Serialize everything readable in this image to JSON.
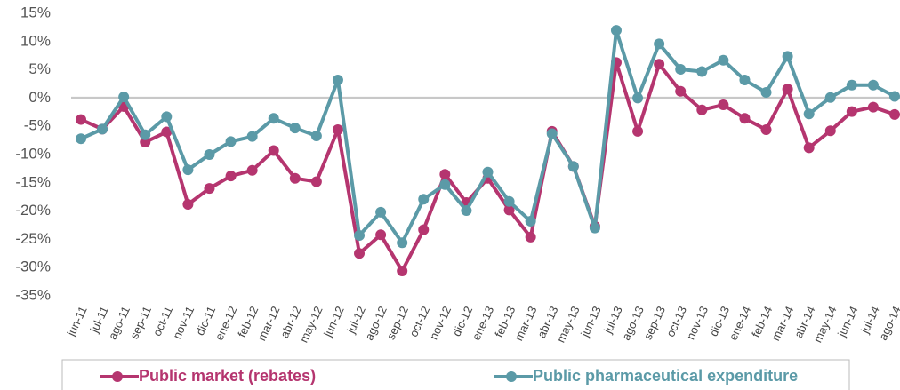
{
  "chart_data": {
    "type": "line",
    "categories": [
      "jun-11",
      "jul-11",
      "ago-11",
      "sep-11",
      "oct-11",
      "nov-11",
      "dic-11",
      "ene-12",
      "feb-12",
      "mar-12",
      "abr-12",
      "may-12",
      "jun-12",
      "jul-12",
      "ago-12",
      "sep-12",
      "oct-12",
      "nov-12",
      "dic-12",
      "ene-13",
      "feb-13",
      "mar-13",
      "abr-13",
      "may-13",
      "jun-13",
      "jul-13",
      "ago-13",
      "sep-13",
      "oct-13",
      "nov-13",
      "dic-13",
      "ene-14",
      "feb-14",
      "mar-14",
      "abr-14",
      "may-14",
      "jun-14",
      "jul-14",
      "ago-14"
    ],
    "series": [
      {
        "name": "Public market (rebates)",
        "color": "#b5356f",
        "values": [
          -3.8,
          -5.5,
          -1.5,
          -7.8,
          -6,
          -18.8,
          -16,
          -13.8,
          -12.8,
          -9.3,
          -14.2,
          -14.8,
          -5.6,
          -27.5,
          -24.2,
          -30.6,
          -23.3,
          -13.5,
          -18.5,
          -14.2,
          -19.8,
          -24.6,
          -5.9,
          -12.1,
          -22.7,
          6.3,
          -5.9,
          6,
          1.2,
          -2.1,
          -1.2,
          -3.6,
          -5.6,
          1.6,
          -8.8,
          -5.8,
          -2.4,
          -1.6,
          -2.9
        ]
      },
      {
        "name": "Public pharmaceutical expenditure",
        "color": "#5b9aa7",
        "values": [
          -7.2,
          -5.5,
          0.2,
          -6.5,
          -3.3,
          -12.7,
          -10,
          -7.7,
          -6.8,
          -3.6,
          -5.3,
          -6.7,
          3.2,
          -24.3,
          -20.2,
          -25.6,
          -17.9,
          -15.3,
          -19.9,
          -13.1,
          -18.3,
          -21.8,
          -6.3,
          -12.1,
          -23,
          12,
          0,
          9.6,
          5.1,
          4.7,
          6.7,
          3.2,
          1,
          7.4,
          -2.8,
          0.1,
          2.3,
          2.3,
          0.3
        ]
      }
    ],
    "ylim": [
      -35,
      15
    ],
    "yticks": [
      {
        "value": -35,
        "label": "-35%"
      },
      {
        "value": -30,
        "label": "-30%"
      },
      {
        "value": -25,
        "label": "-25%"
      },
      {
        "value": -20,
        "label": "-20%"
      },
      {
        "value": -15,
        "label": "-15%"
      },
      {
        "value": -10,
        "label": "-10%"
      },
      {
        "value": -5,
        "label": "-5%"
      },
      {
        "value": 0,
        "label": "0%"
      },
      {
        "value": 5,
        "label": "5%"
      },
      {
        "value": 10,
        "label": "10%"
      },
      {
        "value": 15,
        "label": "15%"
      }
    ],
    "legend": "bottom"
  }
}
